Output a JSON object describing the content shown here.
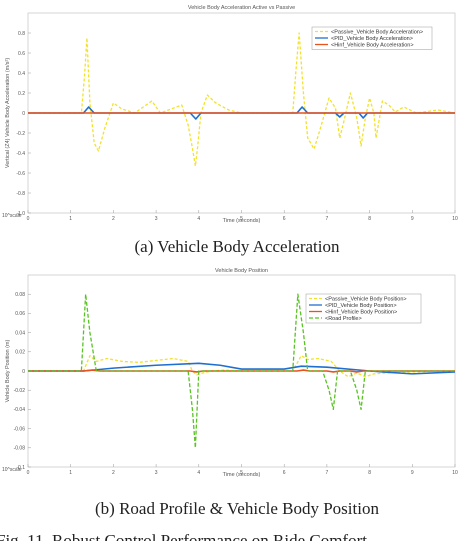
{
  "chart_data": [
    {
      "type": "line",
      "title": "Vehicle Body Acceleration Active vs Passive",
      "xlabel": "Time (seconds)",
      "ylabel": "Vertical (Z4) Vehicle Body Acceleration (m/s²)",
      "corner_label": "10^scale",
      "caption": "(a) Vehicle Body Acceleration",
      "xlim": [
        0,
        10
      ],
      "ylim": [
        -0.1,
        0.1
      ],
      "xticks": [
        "0",
        "1",
        "2",
        "3",
        "4",
        "5",
        "6",
        "7",
        "8",
        "9",
        "10"
      ],
      "yticks": [
        {
          "v": 0.08,
          "label": "0.8"
        },
        {
          "v": 0.06,
          "label": "0.6"
        },
        {
          "v": 0.04,
          "label": "0.4"
        },
        {
          "v": 0.02,
          "label": "0.2"
        },
        {
          "v": 0.0,
          "label": "0"
        },
        {
          "v": -0.02,
          "label": "-0.2"
        },
        {
          "v": -0.04,
          "label": "-0.4"
        },
        {
          "v": -0.06,
          "label": "-0.6"
        },
        {
          "v": -0.08,
          "label": "-0.8"
        },
        {
          "v": -0.1,
          "label": "-1.0"
        }
      ],
      "legend_position": "top-right",
      "series": [
        {
          "name": "<Passive_Vehicle Body Acceleration>",
          "color": "#f2e229",
          "dash": "3,2",
          "x": [
            0,
            1.25,
            1.32,
            1.38,
            1.45,
            1.55,
            1.65,
            1.8,
            2.0,
            2.2,
            2.5,
            2.9,
            3.1,
            3.6,
            3.75,
            3.85,
            3.92,
            3.97,
            4.05,
            4.2,
            4.4,
            4.7,
            5.0,
            6.2,
            6.28,
            6.35,
            6.45,
            6.55,
            6.7,
            6.85,
            7.05,
            7.2,
            7.3,
            7.4,
            7.55,
            7.6,
            7.7,
            7.8,
            7.9,
            8.0,
            8.1,
            8.15,
            8.22,
            8.3,
            8.45,
            8.6,
            8.8,
            9.1,
            9.6,
            10
          ],
          "y": [
            0,
            0,
            0.035,
            0.075,
            0.01,
            -0.03,
            -0.038,
            -0.015,
            0.01,
            0.004,
            0.0,
            0.012,
            0.0,
            0.008,
            -0.012,
            -0.035,
            -0.053,
            -0.035,
            0.0,
            0.018,
            0.01,
            0.003,
            0,
            0,
            0.045,
            0.08,
            0.02,
            -0.025,
            -0.036,
            -0.015,
            0.015,
            0.005,
            -0.025,
            -0.008,
            0.02,
            0.012,
            -0.005,
            -0.033,
            -0.005,
            0.015,
            0.0,
            -0.025,
            -0.008,
            0.012,
            0.008,
            0.001,
            0.006,
            0.0,
            0.003,
            0
          ]
        },
        {
          "name": "<PID_Vehicle Body Acceleration>",
          "color": "#1f6fd1",
          "dash": "",
          "x": [
            0,
            1.3,
            1.42,
            1.55,
            3.8,
            3.93,
            4.05,
            6.3,
            6.42,
            6.55,
            7.2,
            7.3,
            7.4,
            7.75,
            7.85,
            7.95,
            10
          ],
          "y": [
            0,
            0,
            0.006,
            0,
            0,
            -0.006,
            0,
            0,
            0.006,
            0,
            0,
            -0.004,
            0,
            0,
            -0.005,
            0,
            0
          ]
        },
        {
          "name": "<Hinf_Vehicle Body Acceleration>",
          "color": "#e8521c",
          "dash": "",
          "x": [
            0,
            10
          ],
          "y": [
            0,
            0
          ]
        }
      ]
    },
    {
      "type": "line",
      "title": "Vehicle Body Position",
      "xlabel": "Time (seconds)",
      "ylabel": "Vehicle Body Position (m)",
      "corner_label": "10^scale",
      "caption": "(b) Road Profile & Vehicle Body Position",
      "xlim": [
        0,
        10
      ],
      "ylim": [
        -0.1,
        0.1
      ],
      "xticks": [
        "0",
        "1",
        "2",
        "3",
        "4",
        "5",
        "6",
        "7",
        "8",
        "9",
        "10"
      ],
      "yticks": [
        {
          "v": 0.08,
          "label": "0.08"
        },
        {
          "v": 0.06,
          "label": "0.06"
        },
        {
          "v": 0.04,
          "label": "0.04"
        },
        {
          "v": 0.02,
          "label": "0.02"
        },
        {
          "v": 0.0,
          "label": "0"
        },
        {
          "v": -0.02,
          "label": "-0.02"
        },
        {
          "v": -0.04,
          "label": "-0.04"
        },
        {
          "v": -0.06,
          "label": "-0.06"
        },
        {
          "v": -0.08,
          "label": "-0.08"
        },
        {
          "v": -0.1,
          "label": "-0.1"
        }
      ],
      "legend_position": "top-right",
      "series": [
        {
          "name": "<Passive_Vehicle Body Position>",
          "color": "#f2e229",
          "dash": "3,2",
          "x": [
            0,
            1.3,
            1.45,
            1.6,
            1.85,
            2.2,
            2.6,
            3.0,
            3.4,
            3.75,
            3.85,
            3.95,
            4.1,
            4.3,
            4.6,
            5.0,
            6.2,
            6.4,
            6.55,
            6.8,
            7.1,
            7.3,
            7.5,
            7.7,
            7.9,
            8.1,
            8.4,
            9.0,
            10
          ],
          "y": [
            0,
            0,
            0.016,
            0.01,
            0.013,
            0.01,
            0.009,
            0.011,
            0.013,
            0.01,
            0.0,
            -0.004,
            -0.002,
            0.0,
            0.001,
            0,
            0,
            0.016,
            0.012,
            0.013,
            0.01,
            0.0,
            -0.006,
            -0.002,
            -0.006,
            -0.003,
            -0.002,
            -0.001,
            0
          ]
        },
        {
          "name": "<PID_Vehicle Body Position>",
          "color": "#1f6fd1",
          "dash": "",
          "x": [
            0,
            1.3,
            2.0,
            3.0,
            4.0,
            4.5,
            5.0,
            6.0,
            6.4,
            7.0,
            8.0,
            9.0,
            10
          ],
          "y": [
            0,
            0,
            0.003,
            0.006,
            0.008,
            0.006,
            0.002,
            0.002,
            0.005,
            0.004,
            0.0,
            -0.003,
            -0.001
          ]
        },
        {
          "name": "<Hinf_Vehicle Body Position>",
          "color": "#e8521c",
          "dash": "",
          "x": [
            0,
            1.3,
            1.5,
            1.7,
            3.8,
            3.95,
            4.1,
            6.3,
            6.45,
            6.6,
            7.0,
            7.15,
            7.3,
            7.55,
            7.7,
            7.85,
            10
          ],
          "y": [
            0,
            0,
            0.001,
            0,
            0,
            -0.001,
            0,
            0,
            0.001,
            0,
            0,
            -0.001,
            0,
            0,
            -0.001,
            0,
            0
          ]
        },
        {
          "name": "<Road Profile>",
          "color": "#58c322",
          "dash": "4,2",
          "x": [
            0,
            1.25,
            1.35,
            1.45,
            1.6,
            3.75,
            3.85,
            3.92,
            4.0,
            6.2,
            6.32,
            6.45,
            6.55,
            6.9,
            7.05,
            7.15,
            7.25,
            7.55,
            7.7,
            7.8,
            7.9,
            10
          ],
          "y": [
            0,
            0,
            0.08,
            0.04,
            0,
            0,
            -0.04,
            -0.08,
            0,
            0,
            0.08,
            0.04,
            0,
            0,
            -0.02,
            -0.04,
            0,
            0,
            -0.02,
            -0.04,
            0,
            0
          ]
        }
      ]
    }
  ],
  "footer_fragment": "Fig. 11.   Robust Control Performance on Ride Comfort"
}
